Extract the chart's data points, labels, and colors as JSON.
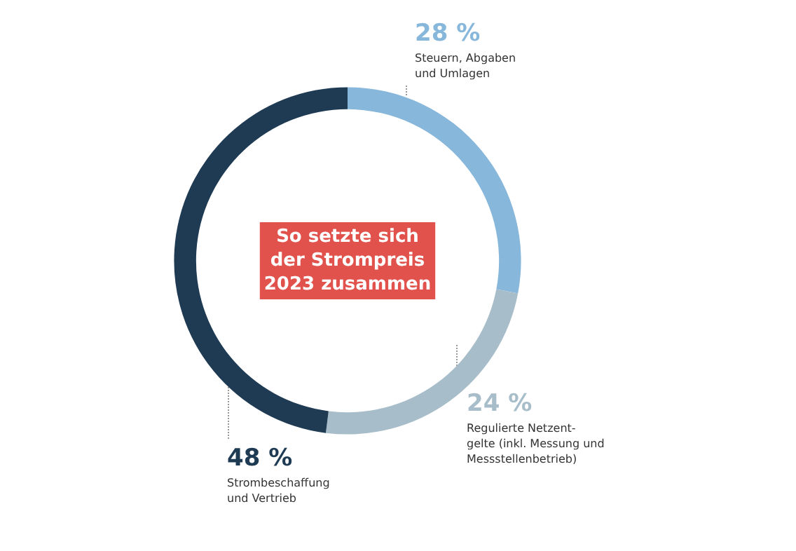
{
  "chart_data": {
    "type": "donut",
    "title": "So setzte sich\nder Strompreis\n2023 zusammen",
    "categories": [
      "Steuern, Abgaben\nund Umlagen",
      "Regulierte Netzent-\ngelte (inkl. Messung und\nMessstellenbetrieb)",
      "Strombeschaffung\nund Vertrieb"
    ],
    "values": [
      28,
      24,
      48
    ],
    "value_labels": [
      "28 %",
      "24 %",
      "48 %"
    ],
    "colors": [
      "#87b7da",
      "#a8bdca",
      "#1f3b53"
    ],
    "legend": false
  }
}
